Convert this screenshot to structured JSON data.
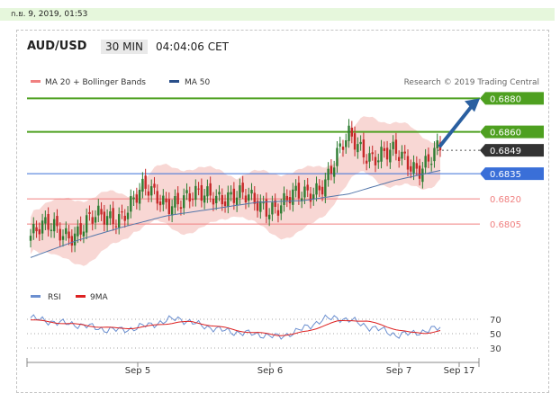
{
  "datetime": "ก.ย. 9, 2019, 01:53",
  "header": {
    "pair": "AUD/USD",
    "timeframe": "30 MIN",
    "time": "04:04:06 CET"
  },
  "legend": {
    "ma20": "MA 20 + Bollinger Bands",
    "ma50": "MA 50",
    "source": "Research © 2019 Trading Central"
  },
  "rsi_legend": {
    "rsi": "RSI",
    "ma": "9MA"
  },
  "colors": {
    "up": "#2e7d32",
    "down": "#c62828",
    "bands": "#f6c9c6",
    "ma50": "#5577aa",
    "resistance": "#4ea020",
    "support": "#3a6fd8",
    "level_red": "#f08080",
    "arrow": "#2a5fa0",
    "label_current": "#333333"
  },
  "chart_data": {
    "type": "line",
    "series": [
      {
        "name": "MA 20 + Bollinger Bands",
        "values": [
          0.6798,
          0.6803,
          0.6809,
          0.6813,
          0.6818,
          0.6817,
          0.6821,
          0.6828,
          0.6843,
          0.684
        ]
      },
      {
        "name": "MA 50",
        "values": [
          0.6785,
          0.6795,
          0.6803,
          0.681,
          0.6814,
          0.6818,
          0.6819,
          0.6823,
          0.6831,
          0.6837
        ]
      }
    ],
    "price_key_points": [
      0.6798,
      0.6803,
      0.68,
      0.6808,
      0.6812,
      0.6824,
      0.682,
      0.6818,
      0.6825,
      0.682,
      0.6818,
      0.6816,
      0.6822,
      0.6833,
      0.6856,
      0.6847,
      0.6845,
      0.684,
      0.6849
    ],
    "levels": [
      {
        "value": 0.688,
        "label": "0.6880",
        "kind": "resistance"
      },
      {
        "value": 0.686,
        "label": "0.6860",
        "kind": "resistance"
      },
      {
        "value": 0.6849,
        "label": "0.6849",
        "kind": "current"
      },
      {
        "value": 0.6835,
        "label": "0.6835",
        "kind": "pivot"
      },
      {
        "value": 0.682,
        "label": "0.6820",
        "kind": "support"
      },
      {
        "value": 0.6805,
        "label": "0.6805",
        "kind": "support"
      }
    ],
    "x_ticks": [
      "Sep 5",
      "Sep 6",
      "Sep 7",
      "Sep 17"
    ],
    "ylim": [
      0.6775,
      0.6885
    ],
    "rsi": {
      "ticks": [
        70,
        50,
        30
      ],
      "ylim": [
        20,
        85
      ],
      "rsi_values": [
        72,
        68,
        65,
        63,
        60,
        56,
        55,
        57,
        62,
        66,
        72,
        65,
        60,
        55,
        52,
        50,
        48,
        45,
        52,
        60,
        70,
        72,
        68,
        60,
        55,
        48,
        50,
        54,
        58
      ],
      "ma_values": [
        69,
        67,
        65,
        63,
        61,
        59,
        57,
        58,
        60,
        63,
        66,
        66,
        63,
        59,
        55,
        52,
        50,
        48,
        49,
        54,
        61,
        67,
        69,
        67,
        62,
        56,
        51,
        51,
        54
      ]
    }
  }
}
